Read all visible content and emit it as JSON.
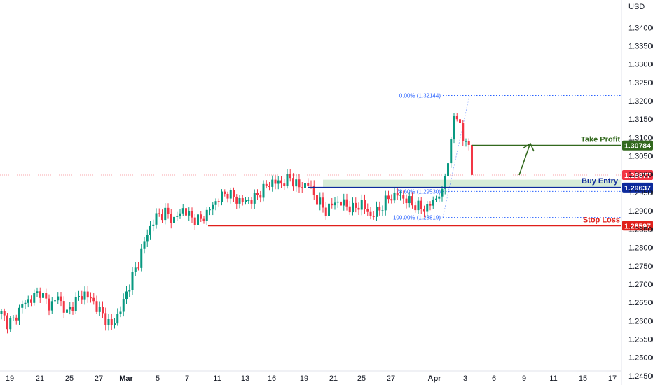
{
  "currency_label": "USD",
  "colors": {
    "up": "#089981",
    "down": "#f23645",
    "take_profit": "#33691e",
    "buy_entry": "#0d2a9c",
    "stop_loss": "#e0201b",
    "current_price": "#f23645",
    "zone_fill": "#c8e6c9",
    "fib": "#2962ff"
  },
  "chart_data": {
    "type": "candlestick",
    "ylim": [
      1.2425,
      1.3475
    ],
    "y_ticks": [
      "1.34000",
      "1.33500",
      "1.33000",
      "1.32500",
      "1.32000",
      "1.31500",
      "1.31000",
      "1.30500",
      "1.30000",
      "1.29500",
      "1.29000",
      "1.28500",
      "1.28000",
      "1.27500",
      "1.27000",
      "1.26500",
      "1.26000",
      "1.25500",
      "1.25000",
      "1.24500"
    ],
    "x_ticks": [
      {
        "label": "19",
        "bold": false
      },
      {
        "label": "21",
        "bold": false
      },
      {
        "label": "25",
        "bold": false
      },
      {
        "label": "27",
        "bold": false
      },
      {
        "label": "Mar",
        "bold": true
      },
      {
        "label": "5",
        "bold": false
      },
      {
        "label": "7",
        "bold": false
      },
      {
        "label": "11",
        "bold": false
      },
      {
        "label": "13",
        "bold": false
      },
      {
        "label": "16",
        "bold": false
      },
      {
        "label": "19",
        "bold": false
      },
      {
        "label": "21",
        "bold": false
      },
      {
        "label": "25",
        "bold": false
      },
      {
        "label": "27",
        "bold": false
      },
      {
        "label": "Apr",
        "bold": true
      },
      {
        "label": "3",
        "bold": false
      },
      {
        "label": "6",
        "bold": false
      },
      {
        "label": "9",
        "bold": false
      },
      {
        "label": "11",
        "bold": false
      },
      {
        "label": "15",
        "bold": false
      },
      {
        "label": "17",
        "bold": false
      }
    ],
    "levels": {
      "take_profit": {
        "label": "Take Profit",
        "value": "1.30784"
      },
      "buy_entry": {
        "label": "Buy Entry",
        "value": "1.29637"
      },
      "stop_loss": {
        "label": "Stop Loss",
        "value": "1.28597"
      },
      "current_price": {
        "value": "1.29977"
      }
    },
    "fib": {
      "top": "0.00% (1.32144)",
      "mid": "78.60% (1.29530)",
      "bottom": "100.00% (1.28819)"
    },
    "zone": [
      1.2963,
      1.2985
    ],
    "anchors": [
      [
        0,
        1.262
      ],
      [
        2,
        1.2595
      ],
      [
        4,
        1.26
      ],
      [
        7,
        1.2645
      ],
      [
        10,
        1.266
      ],
      [
        13,
        1.268
      ],
      [
        16,
        1.264
      ],
      [
        19,
        1.2665
      ],
      [
        22,
        1.262
      ],
      [
        25,
        1.2655
      ],
      [
        28,
        1.2675
      ],
      [
        31,
        1.265
      ],
      [
        34,
        1.2615
      ],
      [
        37,
        1.2585
      ],
      [
        40,
        1.263
      ],
      [
        43,
        1.27
      ],
      [
        46,
        1.276
      ],
      [
        49,
        1.284
      ],
      [
        52,
        1.2885
      ],
      [
        55,
        1.2895
      ],
      [
        58,
        1.2875
      ],
      [
        61,
        1.2905
      ],
      [
        64,
        1.288
      ],
      [
        67,
        1.2875
      ],
      [
        70,
        1.2905
      ],
      [
        73,
        1.2935
      ],
      [
        76,
        1.295
      ],
      [
        79,
        1.293
      ],
      [
        82,
        1.2925
      ],
      [
        85,
        1.2935
      ],
      [
        88,
        1.296
      ],
      [
        91,
        1.298
      ],
      [
        94,
        1.2975
      ],
      [
        97,
        1.299
      ],
      [
        100,
        1.2965
      ],
      [
        103,
        1.2975
      ],
      [
        106,
        1.293
      ],
      [
        109,
        1.29
      ],
      [
        112,
        1.2925
      ],
      [
        115,
        1.292
      ],
      [
        118,
        1.2905
      ],
      [
        121,
        1.292
      ],
      [
        124,
        1.2885
      ],
      [
        127,
        1.2905
      ],
      [
        130,
        1.2935
      ],
      [
        133,
        1.2945
      ],
      [
        136,
        1.293
      ],
      [
        139,
        1.2915
      ],
      [
        142,
        1.2905
      ],
      [
        145,
        1.2925
      ],
      [
        148,
        1.296
      ],
      [
        150,
        1.303
      ],
      [
        152,
        1.316
      ],
      [
        154,
        1.314
      ],
      [
        155,
        1.309
      ],
      [
        156,
        1.309
      ],
      [
        157,
        1.308
      ],
      [
        158,
        1.2998
      ]
    ]
  }
}
